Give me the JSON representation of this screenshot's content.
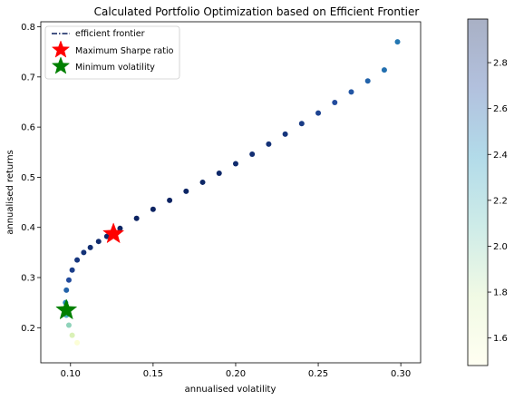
{
  "chart_data": {
    "type": "scatter",
    "title": "Calculated Portfolio Optimization based on Efficient Frontier",
    "xlabel": "annualised volatility",
    "ylabel": "annualised returns",
    "xlim": [
      0.082,
      0.312
    ],
    "ylim": [
      0.13,
      0.81
    ],
    "xticks": [
      0.1,
      0.15,
      0.2,
      0.25,
      0.3
    ],
    "xtick_labels": [
      "0.10",
      "0.15",
      "0.20",
      "0.25",
      "0.30"
    ],
    "yticks": [
      0.2,
      0.3,
      0.4,
      0.5,
      0.6,
      0.7,
      0.8
    ],
    "ytick_labels": [
      "0.2",
      "0.3",
      "0.4",
      "0.5",
      "0.6",
      "0.7",
      "0.8"
    ],
    "grid": false,
    "legend_position": "top-left",
    "legend": [
      {
        "label": "efficient frontier",
        "marker": "dash-dot-line",
        "color": "#0a1f5c"
      },
      {
        "label": "Maximum Sharpe ratio",
        "marker": "star",
        "color": "#ff0000"
      },
      {
        "label": "Minimum volatility",
        "marker": "star",
        "color": "#008000"
      }
    ],
    "frontier": {
      "x": [
        0.104,
        0.101,
        0.099,
        0.0975,
        0.097,
        0.0975,
        0.099,
        0.101,
        0.104,
        0.108,
        0.112,
        0.117,
        0.122,
        0.126,
        0.13,
        0.14,
        0.15,
        0.16,
        0.17,
        0.18,
        0.19,
        0.2,
        0.21,
        0.22,
        0.23,
        0.24,
        0.25,
        0.26,
        0.27,
        0.28,
        0.29,
        0.298
      ],
      "y": [
        0.17,
        0.185,
        0.205,
        0.225,
        0.25,
        0.275,
        0.295,
        0.315,
        0.335,
        0.35,
        0.36,
        0.372,
        0.382,
        0.39,
        0.398,
        0.418,
        0.436,
        0.454,
        0.472,
        0.49,
        0.508,
        0.527,
        0.546,
        0.566,
        0.586,
        0.607,
        0.628,
        0.649,
        0.67,
        0.692,
        0.714,
        0.77
      ],
      "sharpe": [
        1.5,
        1.75,
        2.0,
        2.25,
        2.45,
        2.6,
        2.7,
        2.78,
        2.83,
        2.86,
        2.88,
        2.9,
        2.92,
        2.93,
        2.94,
        2.95,
        2.95,
        2.95,
        2.94,
        2.93,
        2.92,
        2.9,
        2.88,
        2.86,
        2.84,
        2.8,
        2.75,
        2.7,
        2.65,
        2.6,
        2.55,
        2.52
      ]
    },
    "max_sharpe": {
      "x": 0.126,
      "y": 0.387
    },
    "min_volatility": {
      "x": 0.0975,
      "y": 0.235
    },
    "colorbar": {
      "range": [
        1.48,
        2.99
      ],
      "ticks": [
        1.6,
        1.8,
        2.0,
        2.2,
        2.4,
        2.6,
        2.8
      ],
      "tick_labels": [
        "1.6",
        "1.8",
        "2.0",
        "2.2",
        "2.4",
        "2.6",
        "2.8"
      ],
      "colormap": "YlGnBu"
    }
  }
}
